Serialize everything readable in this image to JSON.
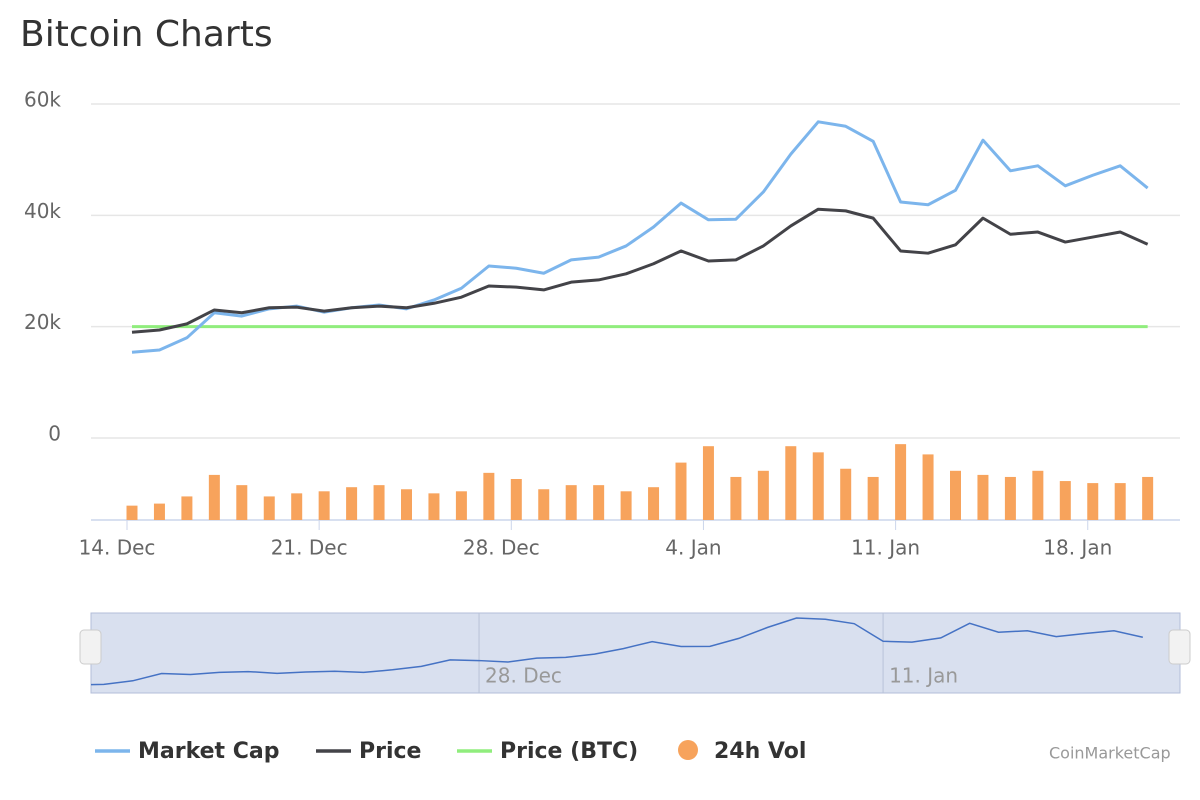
{
  "chart_data": {
    "type": "line",
    "title": "Bitcoin Charts",
    "categories": [
      "14. Dec",
      null,
      null,
      null,
      null,
      null,
      null,
      "21. Dec",
      null,
      null,
      null,
      null,
      null,
      null,
      "28. Dec",
      null,
      null,
      null,
      null,
      null,
      null,
      "4. Jan",
      null,
      null,
      null,
      null,
      null,
      null,
      "11. Jan",
      null,
      null,
      null,
      null,
      null,
      null,
      "18. Jan",
      null,
      null
    ],
    "ylim": [
      0,
      60000
    ],
    "yticks": [
      0,
      {
        "value": 20000,
        "label": "20k"
      },
      {
        "value": 40000,
        "label": "40k"
      },
      {
        "value": 60000,
        "label": "60k"
      }
    ],
    "y2lim": [
      0,
      80
    ],
    "grid": true,
    "series": [
      {
        "name": "Market Cap",
        "type": "line",
        "color": "#7cb5ec",
        "values": [
          15400,
          15800,
          18000,
          22500,
          21900,
          23200,
          23700,
          22600,
          23400,
          23900,
          23200,
          24800,
          26900,
          30900,
          30500,
          29600,
          32000,
          32500,
          34500,
          37900,
          42200,
          39200,
          39300,
          44200,
          51000,
          56800,
          56000,
          53300,
          42400,
          41900,
          44500,
          53500,
          48000,
          48900,
          45300,
          47200,
          48900,
          44900
        ]
      },
      {
        "name": "Price",
        "type": "line",
        "color": "#434348",
        "values": [
          19000,
          19400,
          20500,
          23000,
          22500,
          23400,
          23500,
          22800,
          23400,
          23700,
          23400,
          24200,
          25300,
          27300,
          27100,
          26600,
          28000,
          28400,
          29500,
          31300,
          33600,
          31800,
          32000,
          34500,
          38100,
          41100,
          40800,
          39500,
          33600,
          33200,
          34700,
          39500,
          36600,
          37000,
          35200,
          36100,
          37000,
          34800
        ]
      },
      {
        "name": "Price (BTC)",
        "type": "line",
        "color": "#90ed7d",
        "values": [
          20000,
          20000,
          20000,
          20000,
          20000,
          20000,
          20000,
          20000,
          20000,
          20000,
          20000,
          20000,
          20000,
          20000,
          20000,
          20000,
          20000,
          20000,
          20000,
          20000,
          20000,
          20000,
          20000,
          20000,
          20000,
          20000,
          20000,
          20000,
          20000,
          20000,
          20000,
          20000,
          20000,
          20000,
          20000,
          20000,
          20000,
          20000
        ]
      },
      {
        "name": "24h Vol",
        "type": "column",
        "axis": "y2",
        "color": "#f7a35c",
        "values": [
          14,
          16,
          23,
          44,
          34,
          23,
          26,
          28,
          32,
          34,
          30,
          26,
          28,
          46,
          40,
          30,
          34,
          34,
          28,
          32,
          56,
          72,
          42,
          48,
          72,
          66,
          50,
          42,
          74,
          64,
          48,
          44,
          42,
          48,
          38,
          36,
          36,
          42
        ]
      }
    ],
    "credits": "CoinMarketCap"
  }
}
